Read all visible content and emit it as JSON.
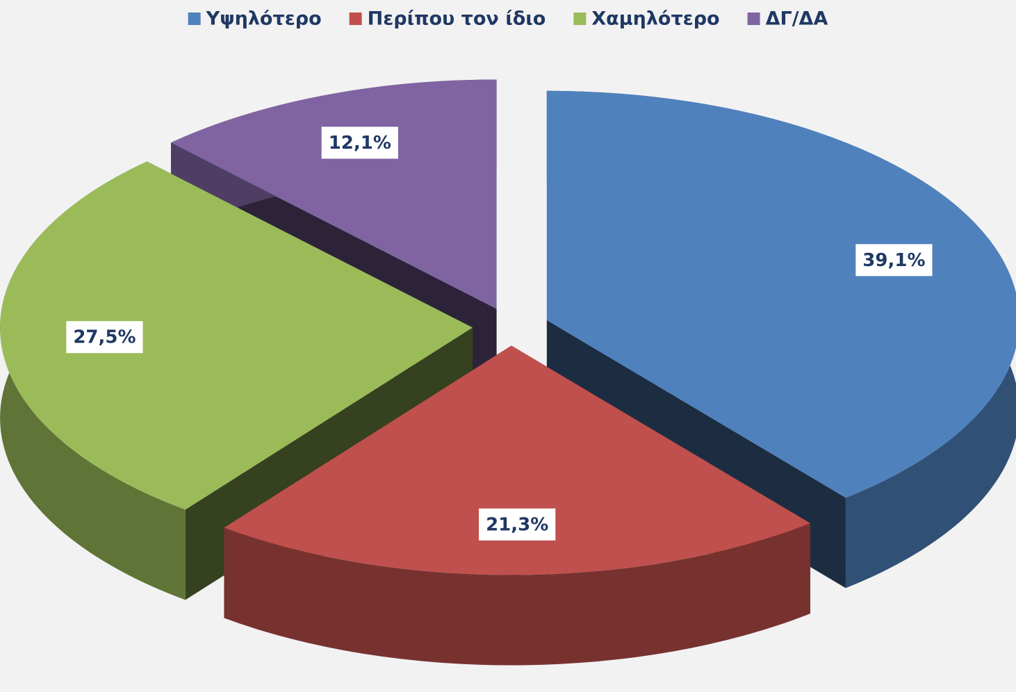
{
  "chart_data": {
    "type": "pie",
    "categories": [
      "Υψηλότερο",
      "Περίπου τον ίδιο",
      "Χαμηλότερο",
      "ΔΓ/ΔΑ"
    ],
    "values": [
      39.1,
      21.3,
      27.5,
      12.1
    ],
    "value_labels": [
      "39,1%",
      "21,3%",
      "27,5%",
      "12,1%"
    ],
    "colors": [
      "#4f81bd",
      "#c0504d",
      "#9bbb59",
      "#8064a2"
    ],
    "legend": "top"
  }
}
